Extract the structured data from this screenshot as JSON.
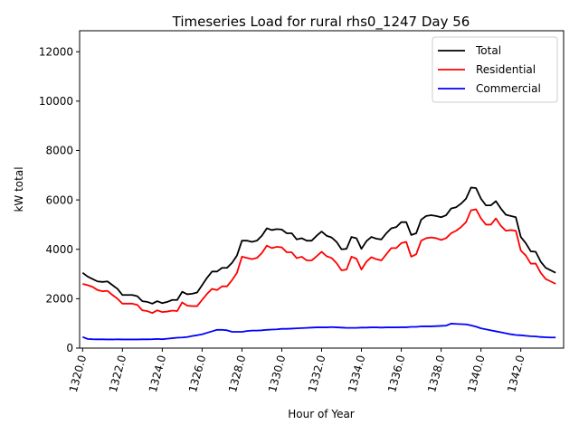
{
  "chart_data": {
    "type": "line",
    "title": "Timeseries Load for rural rhs0_1247  Day 56",
    "xlabel": "Hour of Year",
    "ylabel": "kW total",
    "xlim": [
      1319.85,
      1344.15
    ],
    "ylim": [
      0,
      12850
    ],
    "x_ticks": [
      1320,
      1322,
      1324,
      1326,
      1328,
      1330,
      1332,
      1334,
      1336,
      1338,
      1340,
      1342
    ],
    "x_tick_labels": [
      "1320.0",
      "1322.0",
      "1324.0",
      "1326.0",
      "1328.0",
      "1330.0",
      "1332.0",
      "1334.0",
      "1336.0",
      "1338.0",
      "1340.0",
      "1342.0"
    ],
    "y_ticks": [
      0,
      2000,
      4000,
      6000,
      8000,
      10000,
      12000
    ],
    "y_tick_labels": [
      "0",
      "2000",
      "4000",
      "6000",
      "8000",
      "10000",
      "12000"
    ],
    "legend_position": "top-right",
    "x_start": 1320.0,
    "x_step": 0.25,
    "series": [
      {
        "name": "Total",
        "color": "#000000",
        "values": [
          3050,
          2900,
          2800,
          2700,
          2680,
          2700,
          2550,
          2400,
          2150,
          2150,
          2150,
          2100,
          1900,
          1870,
          1800,
          1900,
          1820,
          1870,
          1950,
          1950,
          2280,
          2180,
          2200,
          2250,
          2550,
          2850,
          3100,
          3100,
          3250,
          3250,
          3450,
          3750,
          4350,
          4350,
          4300,
          4350,
          4550,
          4850,
          4780,
          4820,
          4800,
          4650,
          4650,
          4400,
          4450,
          4350,
          4350,
          4550,
          4720,
          4550,
          4480,
          4300,
          4000,
          4020,
          4500,
          4450,
          4020,
          4330,
          4500,
          4430,
          4400,
          4650,
          4850,
          4900,
          5100,
          5100,
          4580,
          4650,
          5200,
          5350,
          5380,
          5350,
          5300,
          5380,
          5650,
          5700,
          5850,
          6050,
          6500,
          6480,
          6050,
          5780,
          5780,
          5950,
          5650,
          5400,
          5350,
          5300,
          4500,
          4250,
          3920,
          3900,
          3500,
          3250,
          3150,
          3050
        ]
      },
      {
        "name": "Residential",
        "color": "#ff0000",
        "values": [
          2600,
          2550,
          2480,
          2350,
          2300,
          2320,
          2150,
          2000,
          1800,
          1800,
          1800,
          1750,
          1530,
          1500,
          1420,
          1530,
          1460,
          1480,
          1520,
          1500,
          1850,
          1720,
          1700,
          1700,
          1950,
          2200,
          2400,
          2350,
          2500,
          2500,
          2750,
          3050,
          3700,
          3650,
          3600,
          3650,
          3850,
          4150,
          4050,
          4100,
          4080,
          3880,
          3880,
          3640,
          3700,
          3550,
          3550,
          3720,
          3900,
          3720,
          3650,
          3440,
          3150,
          3180,
          3700,
          3620,
          3180,
          3500,
          3680,
          3600,
          3550,
          3800,
          4050,
          4050,
          4250,
          4300,
          3700,
          3800,
          4350,
          4450,
          4480,
          4450,
          4380,
          4450,
          4650,
          4750,
          4900,
          5100,
          5580,
          5620,
          5250,
          5000,
          5000,
          5250,
          4950,
          4750,
          4780,
          4750,
          3950,
          3750,
          3420,
          3420,
          3050,
          2800,
          2700,
          2600
        ]
      },
      {
        "name": "Commercial",
        "color": "#0000ff",
        "values": [
          450,
          370,
          360,
          355,
          355,
          350,
          350,
          355,
          350,
          350,
          350,
          350,
          355,
          355,
          360,
          370,
          360,
          380,
          400,
          420,
          430,
          450,
          490,
          520,
          560,
          620,
          680,
          740,
          740,
          720,
          660,
          660,
          660,
          690,
          710,
          710,
          720,
          740,
          750,
          760,
          780,
          780,
          790,
          800,
          810,
          820,
          830,
          840,
          840,
          840,
          850,
          840,
          830,
          820,
          820,
          820,
          830,
          830,
          840,
          840,
          830,
          840,
          840,
          840,
          845,
          845,
          860,
          860,
          880,
          880,
          880,
          890,
          900,
          910,
          990,
          980,
          970,
          960,
          920,
          870,
          800,
          760,
          720,
          680,
          640,
          600,
          560,
          530,
          520,
          500,
          480,
          470,
          450,
          440,
          430,
          430
        ]
      }
    ]
  }
}
